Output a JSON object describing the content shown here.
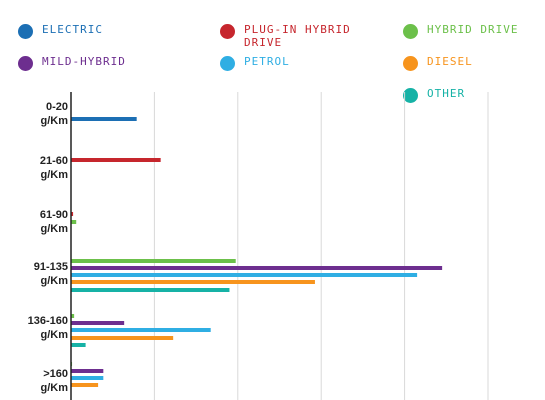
{
  "chart_data": {
    "type": "bar",
    "orientation": "horizontal",
    "xlim": [
      0,
      20000
    ],
    "grid": true,
    "categories": [
      {
        "line1": "0-20",
        "line2": "g/Km"
      },
      {
        "line1": "21-60",
        "line2": "g/Km"
      },
      {
        "line1": "61-90",
        "line2": "g/Km"
      },
      {
        "line1": "91-135",
        "line2": "g/Km"
      },
      {
        "line1": "136-160",
        "line2": "g/Km"
      },
      {
        "line1": ">160",
        "line2": "g/Km"
      }
    ],
    "series": [
      {
        "name": "ELECTRIC",
        "color": "#1c6fb4",
        "values": [
          3150,
          0,
          0,
          0,
          0,
          0
        ]
      },
      {
        "name": "PLUG-IN HYBRID DRIVE",
        "color": "#c6262d",
        "values": [
          0,
          4300,
          100,
          0,
          0,
          0
        ]
      },
      {
        "name": "HYBRID DRIVE",
        "color": "#6cc04a",
        "values": [
          0,
          0,
          250,
          7900,
          150,
          50
        ]
      },
      {
        "name": "MILD-HYBRID",
        "color": "#6d2e8f",
        "values": [
          0,
          0,
          0,
          17800,
          2550,
          1550
        ]
      },
      {
        "name": "PETROL",
        "color": "#2faee3",
        "values": [
          0,
          0,
          0,
          16600,
          6700,
          1550
        ]
      },
      {
        "name": "DIESEL",
        "color": "#f7941d",
        "values": [
          0,
          0,
          0,
          11700,
          4900,
          1300
        ]
      },
      {
        "name": "OTHER",
        "color": "#16b2a6",
        "values": [
          0,
          0,
          0,
          7600,
          700,
          0
        ]
      }
    ]
  }
}
